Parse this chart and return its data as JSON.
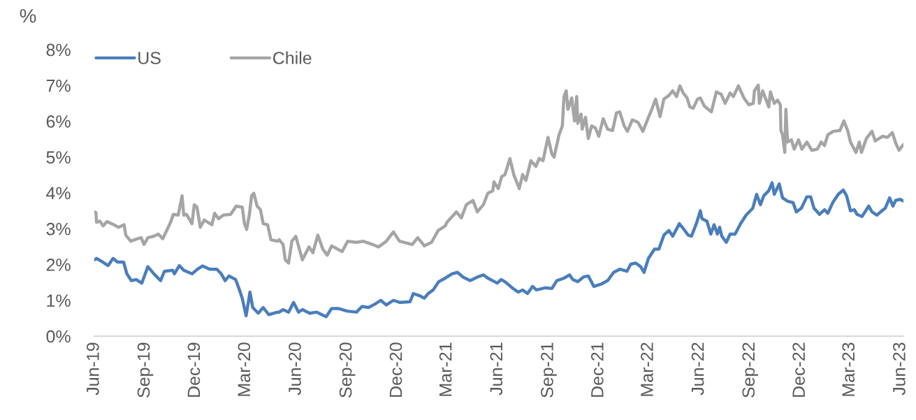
{
  "chart_data": {
    "type": "line",
    "ylabel": "%",
    "legend": "top left",
    "grid": false,
    "marker": "none",
    "line_style": "solid",
    "xlim": [
      "2019-06-01",
      "2023-06-06"
    ],
    "xticks": [
      {
        "value": "2019-06-01",
        "label": "Jun-19"
      },
      {
        "value": "2019-09-01",
        "label": "Sep-19"
      },
      {
        "value": "2019-12-01",
        "label": "Dec-19"
      },
      {
        "value": "2020-03-01",
        "label": "Mar-20"
      },
      {
        "value": "2020-06-01",
        "label": "Jun-20"
      },
      {
        "value": "2020-09-01",
        "label": "Sep-20"
      },
      {
        "value": "2020-12-01",
        "label": "Dec-20"
      },
      {
        "value": "2021-03-01",
        "label": "Mar-21"
      },
      {
        "value": "2021-06-01",
        "label": "Jun-21"
      },
      {
        "value": "2021-09-01",
        "label": "Sep-21"
      },
      {
        "value": "2021-12-01",
        "label": "Dec-21"
      },
      {
        "value": "2022-03-01",
        "label": "Mar-22"
      },
      {
        "value": "2022-06-01",
        "label": "Jun-22"
      },
      {
        "value": "2022-09-01",
        "label": "Sep-22"
      },
      {
        "value": "2022-12-01",
        "label": "Dec-22"
      },
      {
        "value": "2023-03-01",
        "label": "Mar-23"
      },
      {
        "value": "2023-06-01",
        "label": "Jun-23"
      }
    ],
    "ylim": [
      0,
      8
    ],
    "yticks": [
      {
        "value": 0,
        "label": "0%"
      },
      {
        "value": 1,
        "label": "1%"
      },
      {
        "value": 2,
        "label": "2%"
      },
      {
        "value": 3,
        "label": "3%"
      },
      {
        "value": 4,
        "label": "4%"
      },
      {
        "value": 5,
        "label": "5%"
      },
      {
        "value": 6,
        "label": "6%"
      },
      {
        "value": 7,
        "label": "7%"
      },
      {
        "value": 8,
        "label": "8%"
      }
    ],
    "series": [
      {
        "name": "US",
        "color": "#4a7ebb",
        "x": [
          "2019-06-01",
          "2019-06-05",
          "2019-06-16",
          "2019-06-26",
          "2019-07-05",
          "2019-07-13",
          "2019-07-24",
          "2019-07-30",
          "2019-08-07",
          "2019-08-16",
          "2019-08-26",
          "2019-09-06",
          "2019-09-17",
          "2019-09-29",
          "2019-10-06",
          "2019-10-21",
          "2019-10-24",
          "2019-11-02",
          "2019-11-10",
          "2019-11-25",
          "2019-12-05",
          "2019-12-14",
          "2019-12-27",
          "2020-01-09",
          "2020-01-17",
          "2020-01-24",
          "2020-01-31",
          "2020-02-12",
          "2020-02-18",
          "2020-02-24",
          "2020-03-02",
          "2020-03-06",
          "2020-03-09",
          "2020-03-14",
          "2020-03-24",
          "2020-04-02",
          "2020-04-12",
          "2020-04-28",
          "2020-05-01",
          "2020-05-08",
          "2020-05-18",
          "2020-05-27",
          "2020-06-05",
          "2020-06-12",
          "2020-06-25",
          "2020-07-08",
          "2020-07-25",
          "2020-08-04",
          "2020-08-17",
          "2020-09-01",
          "2020-09-18",
          "2020-09-28",
          "2020-10-10",
          "2020-10-22",
          "2020-11-01",
          "2020-11-11",
          "2020-11-24",
          "2020-12-06",
          "2020-12-24",
          "2020-12-30",
          "2021-01-10",
          "2021-01-19",
          "2021-01-26",
          "2021-02-04",
          "2021-02-14",
          "2021-02-26",
          "2021-03-10",
          "2021-03-20",
          "2021-03-30",
          "2021-04-12",
          "2021-04-25",
          "2021-05-06",
          "2021-05-14",
          "2021-05-31",
          "2021-06-07",
          "2021-06-14",
          "2021-06-27",
          "2021-07-08",
          "2021-07-16",
          "2021-07-25",
          "2021-08-03",
          "2021-08-10",
          "2021-08-26",
          "2021-09-07",
          "2021-09-16",
          "2021-09-29",
          "2021-10-09",
          "2021-10-15",
          "2021-10-24",
          "2021-11-03",
          "2021-11-12",
          "2021-11-22",
          "2021-12-05",
          "2021-12-17",
          "2021-12-28",
          "2022-01-08",
          "2022-01-21",
          "2022-01-28",
          "2022-02-06",
          "2022-02-15",
          "2022-02-21",
          "2022-03-01",
          "2022-03-12",
          "2022-03-20",
          "2022-03-29",
          "2022-04-07",
          "2022-04-14",
          "2022-04-26",
          "2022-05-03",
          "2022-05-12",
          "2022-05-18",
          "2022-05-27",
          "2022-06-03",
          "2022-06-06",
          "2022-06-15",
          "2022-06-22",
          "2022-06-28",
          "2022-07-04",
          "2022-07-08",
          "2022-07-12",
          "2022-07-20",
          "2022-07-27",
          "2022-08-05",
          "2022-08-15",
          "2022-08-25",
          "2022-09-06",
          "2022-09-13",
          "2022-09-20",
          "2022-09-26",
          "2022-10-05",
          "2022-10-11",
          "2022-10-15",
          "2022-10-24",
          "2022-10-30",
          "2022-11-08",
          "2022-11-18",
          "2022-11-24",
          "2022-12-03",
          "2022-12-13",
          "2022-12-20",
          "2022-12-26",
          "2023-01-05",
          "2023-01-14",
          "2023-01-20",
          "2023-01-29",
          "2023-02-08",
          "2023-02-17",
          "2023-02-23",
          "2023-03-02",
          "2023-03-09",
          "2023-03-14",
          "2023-03-23",
          "2023-04-04",
          "2023-04-10",
          "2023-04-19",
          "2023-04-28",
          "2023-05-04",
          "2023-05-12",
          "2023-05-18",
          "2023-05-23",
          "2023-05-31",
          "2023-06-06"
        ],
        "values": [
          2.13,
          2.17,
          2.07,
          1.97,
          2.17,
          2.07,
          2.07,
          1.74,
          1.55,
          1.58,
          1.48,
          1.94,
          1.74,
          1.55,
          1.81,
          1.84,
          1.74,
          1.97,
          1.84,
          1.74,
          1.87,
          1.96,
          1.87,
          1.87,
          1.74,
          1.55,
          1.68,
          1.58,
          1.33,
          1.06,
          0.57,
          0.94,
          1.23,
          0.8,
          0.64,
          0.8,
          0.6,
          0.67,
          0.67,
          0.74,
          0.67,
          0.94,
          0.67,
          0.74,
          0.64,
          0.67,
          0.54,
          0.77,
          0.77,
          0.7,
          0.67,
          0.83,
          0.8,
          0.9,
          1.0,
          0.87,
          1.0,
          0.94,
          0.96,
          1.19,
          1.13,
          1.06,
          1.19,
          1.29,
          1.52,
          1.62,
          1.74,
          1.78,
          1.65,
          1.55,
          1.65,
          1.71,
          1.62,
          1.48,
          1.58,
          1.52,
          1.35,
          1.23,
          1.29,
          1.19,
          1.39,
          1.29,
          1.35,
          1.33,
          1.55,
          1.62,
          1.71,
          1.58,
          1.52,
          1.65,
          1.68,
          1.39,
          1.45,
          1.55,
          1.78,
          1.87,
          1.81,
          2.01,
          2.04,
          1.94,
          1.78,
          2.17,
          2.43,
          2.43,
          2.82,
          2.95,
          2.79,
          3.14,
          3.01,
          2.82,
          2.79,
          3.15,
          3.5,
          3.28,
          3.21,
          2.85,
          3.11,
          2.85,
          3.04,
          2.79,
          2.62,
          2.85,
          2.85,
          3.14,
          3.38,
          3.57,
          3.96,
          3.67,
          3.92,
          4.06,
          4.28,
          3.96,
          4.25,
          3.86,
          3.77,
          3.73,
          3.47,
          3.57,
          3.89,
          3.89,
          3.57,
          3.4,
          3.53,
          3.43,
          3.73,
          3.96,
          4.08,
          3.92,
          3.5,
          3.53,
          3.4,
          3.34,
          3.63,
          3.47,
          3.38,
          3.5,
          3.57,
          3.86,
          3.63,
          3.79,
          3.82,
          3.77
        ]
      },
      {
        "name": "Chile",
        "color": "#a5a5a5",
        "x": [
          "2019-06-01",
          "2019-06-04",
          "2019-06-05",
          "2019-06-11",
          "2019-06-17",
          "2019-06-24",
          "2019-07-06",
          "2019-07-15",
          "2019-07-25",
          "2019-07-28",
          "2019-08-06",
          "2019-08-18",
          "2019-08-25",
          "2019-08-30",
          "2019-09-06",
          "2019-09-17",
          "2019-09-25",
          "2019-10-03",
          "2019-10-12",
          "2019-10-18",
          "2019-10-22",
          "2019-10-31",
          "2019-11-07",
          "2019-11-10",
          "2019-11-15",
          "2019-11-25",
          "2019-11-29",
          "2019-12-04",
          "2019-12-10",
          "2019-12-17",
          "2019-12-31",
          "2020-01-05",
          "2020-01-12",
          "2020-01-21",
          "2020-02-03",
          "2020-02-13",
          "2020-02-24",
          "2020-02-28",
          "2020-03-03",
          "2020-03-08",
          "2020-03-12",
          "2020-03-16",
          "2020-03-22",
          "2020-03-28",
          "2020-04-02",
          "2020-04-10",
          "2020-04-16",
          "2020-04-28",
          "2020-05-01",
          "2020-05-08",
          "2020-05-12",
          "2020-05-18",
          "2020-05-24",
          "2020-05-31",
          "2020-06-12",
          "2020-06-24",
          "2020-07-01",
          "2020-07-10",
          "2020-07-19",
          "2020-07-27",
          "2020-08-04",
          "2020-08-23",
          "2020-09-02",
          "2020-09-18",
          "2020-09-30",
          "2020-10-17",
          "2020-10-28",
          "2020-11-11",
          "2020-11-24",
          "2020-12-05",
          "2020-12-28",
          "2021-01-07",
          "2021-01-19",
          "2021-02-01",
          "2021-02-13",
          "2021-02-26",
          "2021-03-01",
          "2021-03-14",
          "2021-03-18",
          "2021-03-27",
          "2021-04-05",
          "2021-04-17",
          "2021-04-25",
          "2021-05-06",
          "2021-05-14",
          "2021-05-23",
          "2021-05-25",
          "2021-06-02",
          "2021-06-08",
          "2021-06-14",
          "2021-06-23",
          "2021-06-30",
          "2021-07-10",
          "2021-07-16",
          "2021-07-22",
          "2021-07-31",
          "2021-08-09",
          "2021-08-15",
          "2021-08-22",
          "2021-08-26",
          "2021-08-31",
          "2021-09-07",
          "2021-09-11",
          "2021-09-20",
          "2021-09-26",
          "2021-09-29",
          "2021-10-03",
          "2021-10-06",
          "2021-10-13",
          "2021-10-18",
          "2021-10-22",
          "2021-10-24",
          "2021-10-30",
          "2021-11-01",
          "2021-11-07",
          "2021-11-12",
          "2021-11-18",
          "2021-11-25",
          "2021-12-01",
          "2021-12-09",
          "2021-12-17",
          "2021-12-26",
          "2022-01-02",
          "2022-01-08",
          "2022-01-16",
          "2022-01-22",
          "2022-01-31",
          "2022-02-10",
          "2022-02-19",
          "2022-02-28",
          "2022-03-07",
          "2022-03-14",
          "2022-03-22",
          "2022-03-29",
          "2022-04-07",
          "2022-04-14",
          "2022-04-21",
          "2022-04-27",
          "2022-05-03",
          "2022-05-10",
          "2022-05-15",
          "2022-05-21",
          "2022-05-29",
          "2022-06-03",
          "2022-06-10",
          "2022-06-23",
          "2022-07-02",
          "2022-07-11",
          "2022-07-18",
          "2022-07-27",
          "2022-08-02",
          "2022-08-11",
          "2022-08-21",
          "2022-08-30",
          "2022-09-07",
          "2022-09-09",
          "2022-09-16",
          "2022-09-18",
          "2022-09-24",
          "2022-10-05",
          "2022-10-08",
          "2022-10-15",
          "2022-10-21",
          "2022-10-26",
          "2022-10-27",
          "2022-10-30",
          "2022-11-03",
          "2022-11-05",
          "2022-11-08",
          "2022-11-15",
          "2022-11-20",
          "2022-11-28",
          "2022-12-04",
          "2022-12-13",
          "2022-12-22",
          "2023-01-01",
          "2023-01-08",
          "2023-01-14",
          "2023-01-20",
          "2023-01-30",
          "2023-02-11",
          "2023-02-18",
          "2023-02-25",
          "2023-03-02",
          "2023-03-12",
          "2023-03-18",
          "2023-03-22",
          "2023-03-31",
          "2023-04-10",
          "2023-04-16",
          "2023-04-29",
          "2023-05-08",
          "2023-05-17",
          "2023-05-23",
          "2023-05-29",
          "2023-06-06"
        ],
        "values": [
          3.47,
          3.45,
          3.18,
          3.21,
          3.08,
          3.2,
          3.11,
          3.04,
          3.11,
          2.82,
          2.65,
          2.72,
          2.75,
          2.56,
          2.75,
          2.79,
          2.85,
          2.72,
          3.01,
          3.21,
          3.4,
          3.38,
          3.92,
          3.38,
          3.4,
          3.14,
          3.67,
          3.6,
          3.04,
          3.24,
          3.11,
          3.43,
          3.28,
          3.38,
          3.4,
          3.63,
          3.6,
          3.14,
          2.98,
          3.4,
          3.92,
          3.99,
          3.63,
          3.53,
          3.14,
          3.11,
          2.69,
          2.65,
          2.69,
          2.56,
          2.13,
          2.04,
          2.65,
          2.79,
          2.13,
          2.49,
          2.33,
          2.82,
          2.43,
          2.26,
          2.52,
          2.36,
          2.65,
          2.62,
          2.65,
          2.56,
          2.49,
          2.65,
          2.91,
          2.65,
          2.56,
          2.75,
          2.52,
          2.62,
          2.95,
          3.08,
          3.18,
          3.4,
          3.47,
          3.3,
          3.67,
          3.79,
          3.47,
          3.67,
          3.99,
          4.06,
          4.31,
          4.12,
          4.45,
          4.51,
          4.96,
          4.51,
          4.12,
          4.51,
          4.35,
          4.9,
          4.74,
          4.96,
          4.9,
          5.19,
          5.55,
          5.09,
          5.0,
          5.62,
          5.87,
          6.69,
          6.85,
          6.33,
          6.65,
          6.01,
          6.69,
          5.94,
          6.2,
          5.78,
          6.11,
          5.52,
          5.87,
          5.81,
          5.58,
          6.07,
          5.78,
          5.74,
          6.23,
          6.26,
          5.87,
          5.72,
          6.04,
          5.97,
          5.72,
          6.07,
          6.33,
          6.62,
          6.13,
          6.62,
          6.72,
          6.85,
          6.69,
          6.99,
          6.79,
          6.65,
          6.4,
          6.36,
          6.62,
          6.65,
          6.43,
          6.26,
          6.82,
          6.75,
          6.5,
          6.79,
          6.69,
          6.99,
          6.65,
          6.46,
          6.5,
          6.85,
          7.01,
          6.5,
          6.85,
          6.4,
          6.82,
          6.5,
          6.59,
          6.46,
          5.74,
          5.62,
          5.13,
          6.33,
          5.42,
          5.48,
          5.22,
          5.48,
          5.22,
          5.42,
          5.19,
          5.22,
          5.42,
          5.32,
          5.62,
          5.72,
          5.74,
          6.01,
          5.74,
          5.42,
          5.13,
          5.42,
          5.13,
          5.52,
          5.72,
          5.45,
          5.58,
          5.55,
          5.68,
          5.39,
          5.19,
          5.35
        ]
      }
    ]
  }
}
